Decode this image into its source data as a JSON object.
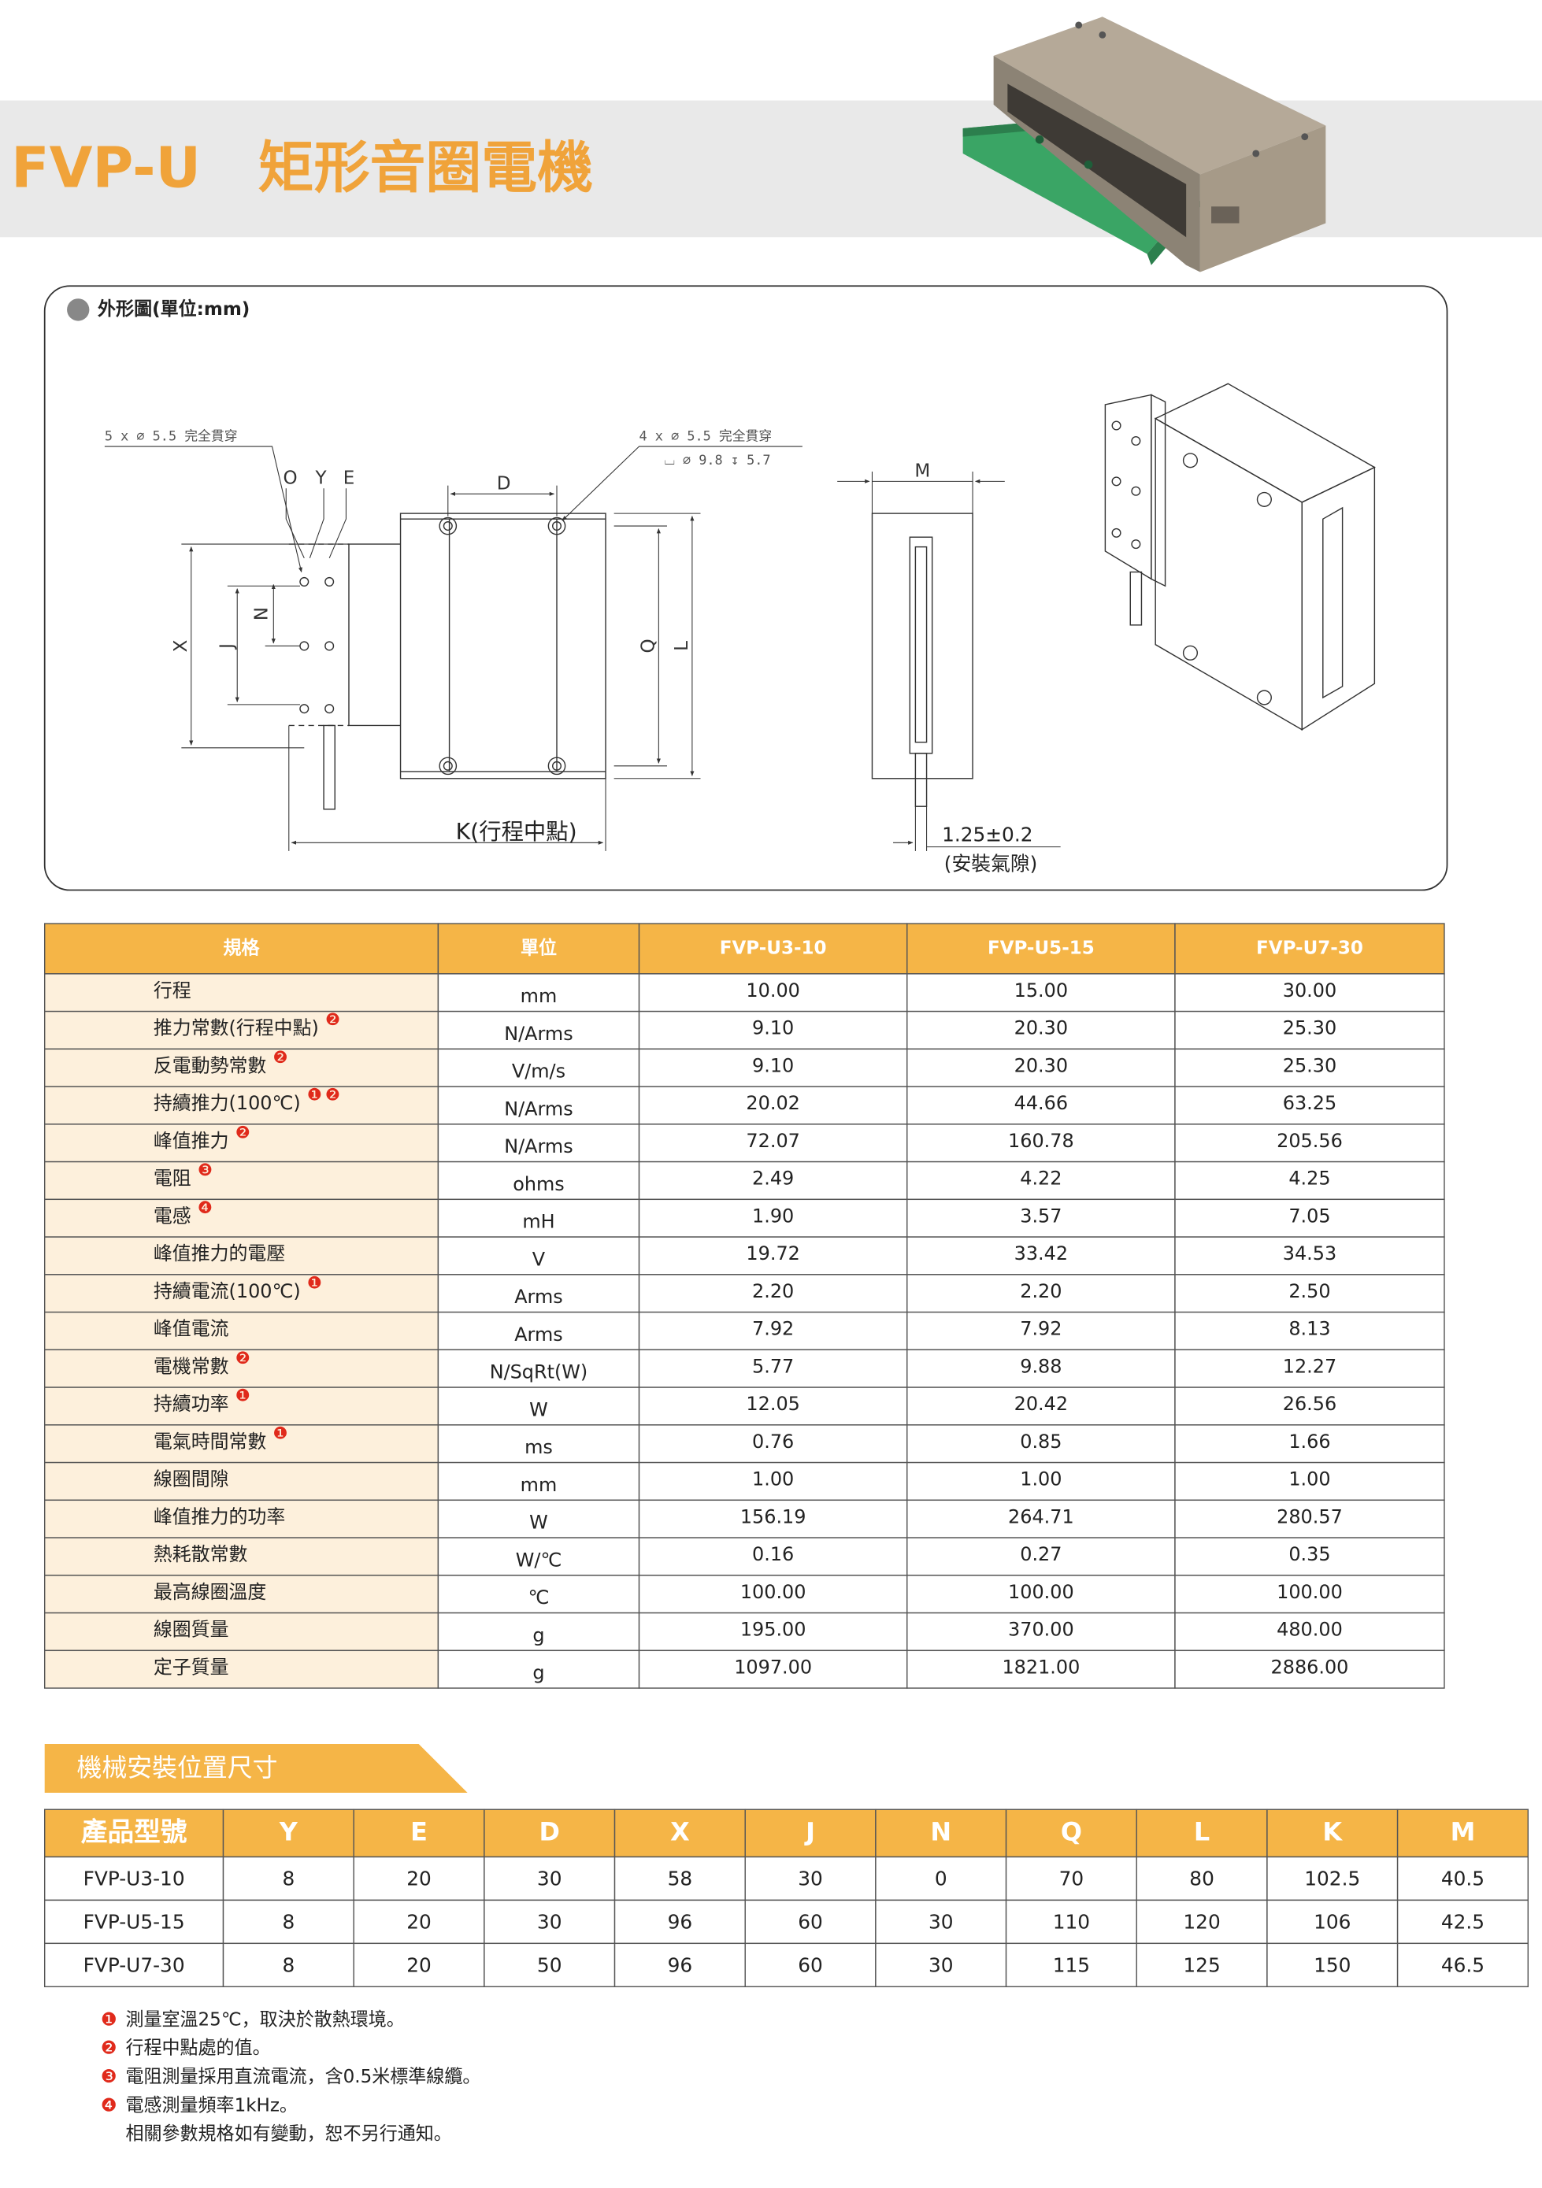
{
  "header": {
    "title": "FVP-U",
    "subtitle": "矩形音圈電機"
  },
  "drawing": {
    "label": "外形圖(單位:mm)",
    "hole_note_left": "5 x ∅ 5.5 完全貫穿",
    "hole_note_right": "4 x ∅ 5.5 完全貫穿",
    "counterbore_note": "⌴ ∅ 9.8 ↧ 5.7",
    "dims": [
      "O",
      "Y",
      "E",
      "D",
      "X",
      "J",
      "N",
      "Q",
      "L",
      "M"
    ],
    "stroke_label": "K(行程中點)",
    "gap": "1.25±0.2",
    "gap_label": "(安裝氣隙)"
  },
  "spec_table": {
    "headers": [
      "規格",
      "單位",
      "FVP-U3-10",
      "FVP-U5-15",
      "FVP-U7-30"
    ],
    "rows": [
      {
        "name": "行程",
        "notes": [],
        "unit": "mm",
        "values": [
          "10.00",
          "15.00",
          "30.00"
        ]
      },
      {
        "name": "推力常數(行程中點)",
        "notes": [
          "❷"
        ],
        "unit": "N/Arms",
        "values": [
          "9.10",
          "20.30",
          "25.30"
        ]
      },
      {
        "name": "反電動勢常數",
        "notes": [
          "❷"
        ],
        "unit": "V/m/s",
        "values": [
          "9.10",
          "20.30",
          "25.30"
        ]
      },
      {
        "name": "持續推力(100℃)",
        "notes": [
          "❶",
          "❷"
        ],
        "unit": "N/Arms",
        "values": [
          "20.02",
          "44.66",
          "63.25"
        ]
      },
      {
        "name": "峰值推力",
        "notes": [
          "❷"
        ],
        "unit": "N/Arms",
        "values": [
          "72.07",
          "160.78",
          "205.56"
        ]
      },
      {
        "name": "電阻",
        "notes": [
          "❸"
        ],
        "unit": "ohms",
        "values": [
          "2.49",
          "4.22",
          "4.25"
        ]
      },
      {
        "name": "電感",
        "notes": [
          "❹"
        ],
        "unit": "mH",
        "values": [
          "1.90",
          "3.57",
          "7.05"
        ]
      },
      {
        "name": "峰值推力的電壓",
        "notes": [],
        "unit": "V",
        "values": [
          "19.72",
          "33.42",
          "34.53"
        ]
      },
      {
        "name": "持續電流(100℃)",
        "notes": [
          "❶"
        ],
        "unit": "Arms",
        "values": [
          "2.20",
          "2.20",
          "2.50"
        ]
      },
      {
        "name": "峰值電流",
        "notes": [],
        "unit": "Arms",
        "values": [
          "7.92",
          "7.92",
          "8.13"
        ]
      },
      {
        "name": "電機常數",
        "notes": [
          "❷"
        ],
        "unit": "N/SqRt(W)",
        "values": [
          "5.77",
          "9.88",
          "12.27"
        ]
      },
      {
        "name": "持續功率",
        "notes": [
          "❶"
        ],
        "unit": "W",
        "values": [
          "12.05",
          "20.42",
          "26.56"
        ]
      },
      {
        "name": "電氣時間常數",
        "notes": [
          "❶"
        ],
        "unit": "ms",
        "values": [
          "0.76",
          "0.85",
          "1.66"
        ]
      },
      {
        "name": "線圈間隙",
        "notes": [],
        "unit": "mm",
        "values": [
          "1.00",
          "1.00",
          "1.00"
        ]
      },
      {
        "name": "峰值推力的功率",
        "notes": [],
        "unit": "W",
        "values": [
          "156.19",
          "264.71",
          "280.57"
        ]
      },
      {
        "name": "熱耗散常數",
        "notes": [],
        "unit": "W/℃",
        "values": [
          "0.16",
          "0.27",
          "0.35"
        ]
      },
      {
        "name": "最高線圈溫度",
        "notes": [],
        "unit": "℃",
        "values": [
          "100.00",
          "100.00",
          "100.00"
        ]
      },
      {
        "name": "線圈質量",
        "notes": [],
        "unit": "g",
        "values": [
          "195.00",
          "370.00",
          "480.00"
        ]
      },
      {
        "name": "定子質量",
        "notes": [],
        "unit": "g",
        "values": [
          "1097.00",
          "1821.00",
          "2886.00"
        ]
      }
    ]
  },
  "mount_section": {
    "title": "機械安裝位置尺寸"
  },
  "mount_table": {
    "headers": [
      "產品型號",
      "Y",
      "E",
      "D",
      "X",
      "J",
      "N",
      "Q",
      "L",
      "K",
      "M"
    ],
    "rows": [
      [
        "FVP-U3-10",
        "8",
        "20",
        "30",
        "58",
        "30",
        "0",
        "70",
        "80",
        "102.5",
        "40.5"
      ],
      [
        "FVP-U5-15",
        "8",
        "20",
        "30",
        "96",
        "60",
        "30",
        "110",
        "120",
        "106",
        "42.5"
      ],
      [
        "FVP-U7-30",
        "8",
        "20",
        "50",
        "96",
        "60",
        "30",
        "115",
        "125",
        "150",
        "46.5"
      ]
    ]
  },
  "footnotes": [
    {
      "marker": "❶",
      "text": "測量室溫25℃，取決於散熱環境。"
    },
    {
      "marker": "❷",
      "text": "行程中點處的值。"
    },
    {
      "marker": "❸",
      "text": "電阻測量採用直流電流，含0.5米標準線纜。"
    },
    {
      "marker": "❹",
      "text": "電感測量頻率1kHz。"
    }
  ],
  "disclaimer": "相關參數規格如有變動，恕不另行通知。"
}
